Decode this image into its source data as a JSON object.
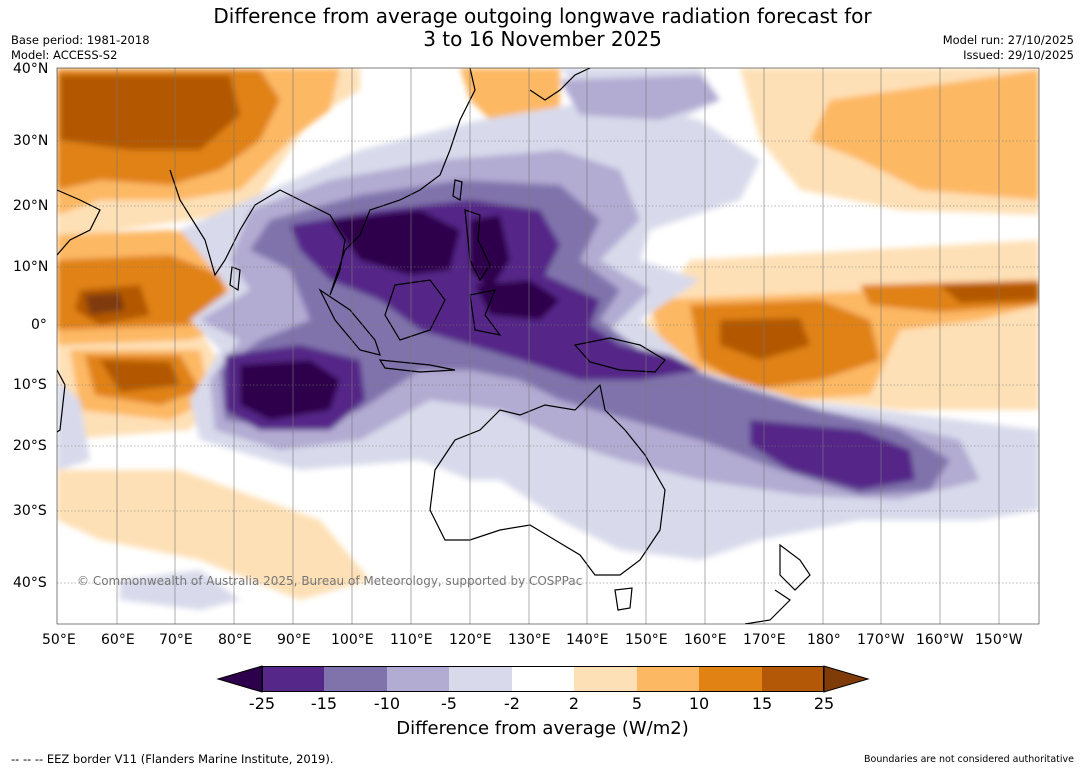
{
  "title_line1": "Difference from average outgoing longwave radiation forecast for",
  "title_line2": "3 to 16 November 2025",
  "base_period": "Base period: 1981-2018",
  "model": "Model: ACCESS-S2",
  "model_run": "Model run: 27/10/2025",
  "issued": "Issued: 29/10/2025",
  "copyright": "© Commonwealth of Australia 2025, Bureau of Meteorology, supported by COSPPac",
  "footer_left": "--  --  -- EEZ border V11 (Flanders Marine Institute, 2019).",
  "footer_right": "Boundaries are not considered authoritative",
  "lat_labels": [
    "40°N",
    "30°N",
    "20°N",
    "10°N",
    "0°",
    "10°S",
    "20°S",
    "30°S",
    "40°S"
  ],
  "lon_labels": [
    "50°E",
    "60°E",
    "70°E",
    "80°E",
    "90°E",
    "100°E",
    "110°E",
    "120°E",
    "130°E",
    "140°E",
    "150°E",
    "160°E",
    "170°E",
    "180°",
    "170°W",
    "160°W",
    "150°W"
  ],
  "colorbar": {
    "title": "Difference from average (W/m2)",
    "ticks": [
      "-25",
      "-15",
      "-10",
      "-5",
      "-2",
      "2",
      "5",
      "10",
      "15",
      "25"
    ],
    "colors": [
      "#2d004b",
      "#542788",
      "#8073ac",
      "#b2abd2",
      "#d8daeb",
      "#ffffff",
      "#fee0b6",
      "#fdb863",
      "#e08214",
      "#b35806",
      "#7f3b08"
    ]
  }
}
